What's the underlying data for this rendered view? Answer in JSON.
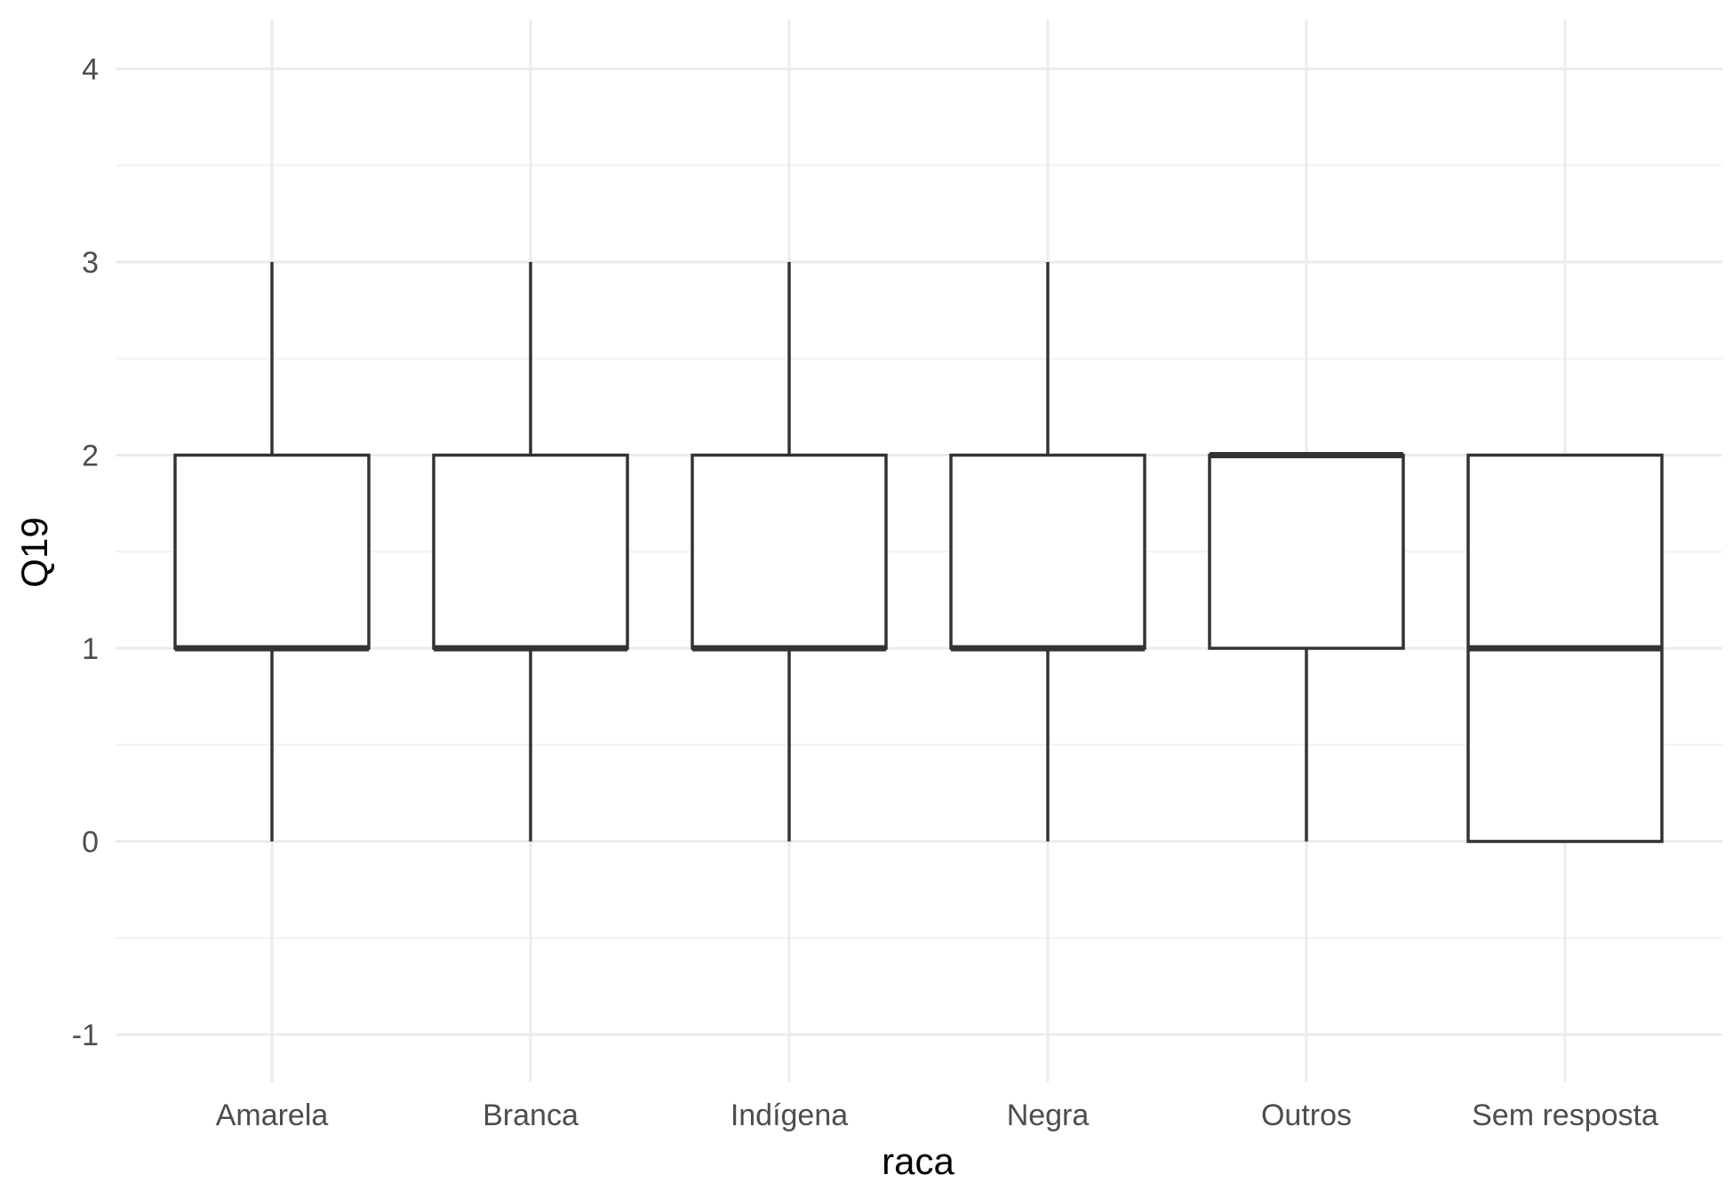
{
  "chart_data": {
    "type": "boxplot",
    "title": "",
    "xlabel": "raca",
    "ylabel": "Q19",
    "ylim": [
      -1.25,
      4.25
    ],
    "y_ticks": [
      -1,
      0,
      1,
      2,
      3,
      4
    ],
    "y_tick_labels": [
      "-1",
      "0",
      "1",
      "2",
      "3",
      "4"
    ],
    "y_minor_ticks": [
      -0.5,
      0.5,
      1.5,
      2.5,
      3.5
    ],
    "categories": [
      "Amarela",
      "Branca",
      "Indígena",
      "Negra",
      "Outros",
      "Sem resposta"
    ],
    "boxes": [
      {
        "category": "Amarela",
        "lower_whisker": 0,
        "q1": 1,
        "median": 1,
        "q3": 2,
        "upper_whisker": 3
      },
      {
        "category": "Branca",
        "lower_whisker": 0,
        "q1": 1,
        "median": 1,
        "q3": 2,
        "upper_whisker": 3
      },
      {
        "category": "Indígena",
        "lower_whisker": 0,
        "q1": 1,
        "median": 1,
        "q3": 2,
        "upper_whisker": 3
      },
      {
        "category": "Negra",
        "lower_whisker": 0,
        "q1": 1,
        "median": 1,
        "q3": 2,
        "upper_whisker": 3
      },
      {
        "category": "Outros",
        "lower_whisker": 0,
        "q1": 1,
        "median": 2,
        "q3": 2,
        "upper_whisker": 2
      },
      {
        "category": "Sem resposta",
        "lower_whisker": 0,
        "q1": 0,
        "median": 1,
        "q3": 2,
        "upper_whisker": 2
      }
    ],
    "grid": true,
    "legend": "none"
  },
  "colors": {
    "background": "#ffffff",
    "grid_major": "#ebebeb",
    "grid_minor": "#f2f2f2",
    "box_stroke": "#333333",
    "box_fill": "#ffffff",
    "tick_text": "#4d4d4d",
    "axis_title": "#000000"
  }
}
